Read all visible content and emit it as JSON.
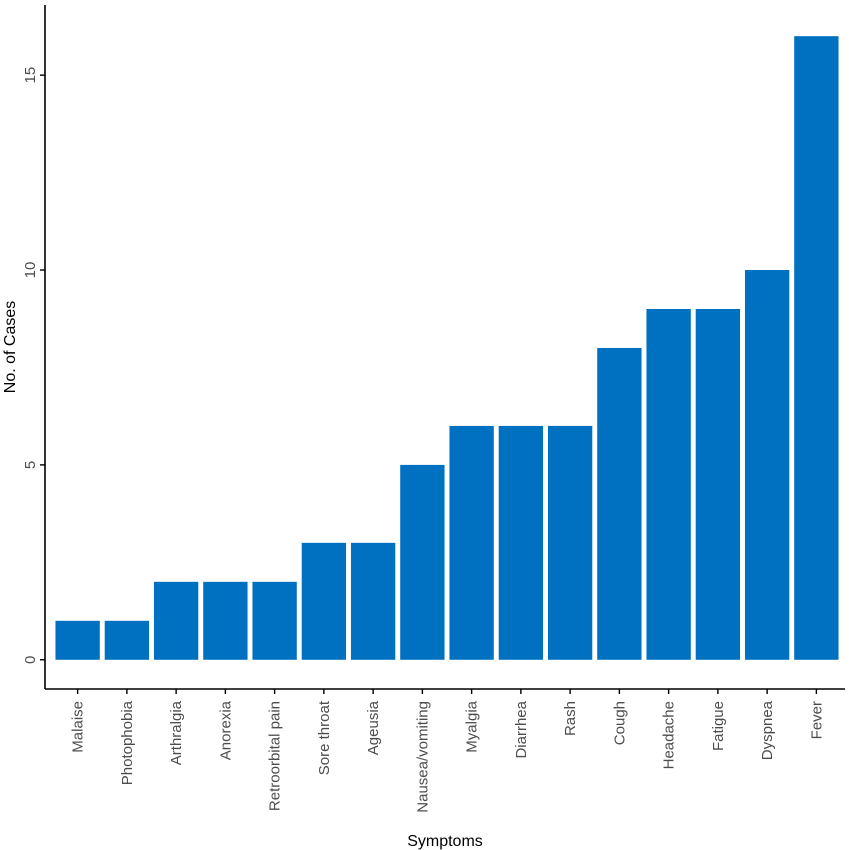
{
  "chart_data": {
    "type": "bar",
    "categories": [
      "Malaise",
      "Photophobia",
      "Arthralgia",
      "Anorexia",
      "Retroorbital pain",
      "Sore throat",
      "Ageusia",
      "Nausea/vomiting",
      "Myalgia",
      "Diarrhea",
      "Rash",
      "Cough",
      "Headache",
      "Fatigue",
      "Dyspnea",
      "Fever"
    ],
    "values": [
      1,
      1,
      2,
      2,
      2,
      3,
      3,
      5,
      6,
      6,
      6,
      8,
      9,
      9,
      10,
      16
    ],
    "xlabel": "Symptoms",
    "ylabel": "No. of Cases",
    "yticks": [
      0,
      5,
      10,
      15
    ],
    "ylim": [
      -0.75,
      16.8
    ],
    "grid": false,
    "bar_color": "#0070C0",
    "axis_color": "#000000"
  }
}
